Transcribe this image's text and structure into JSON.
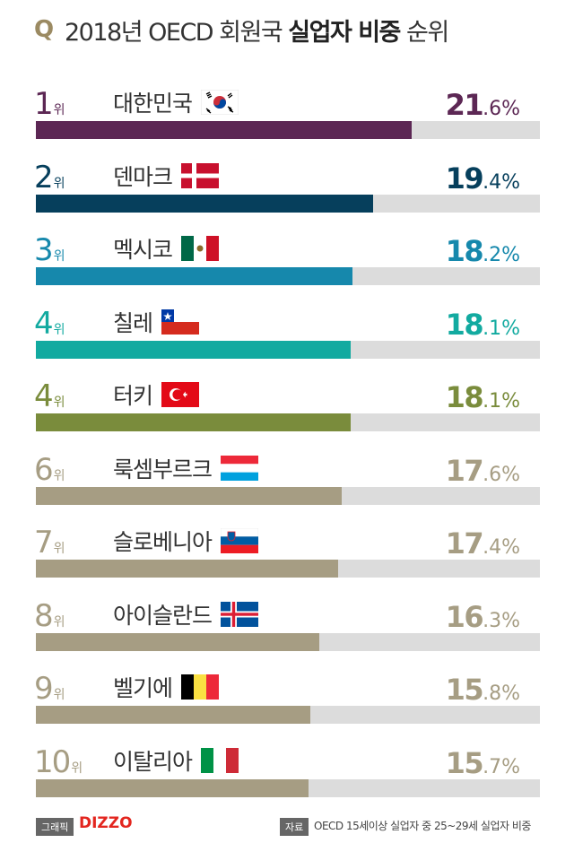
{
  "header": {
    "q_mark": "Q",
    "title_pre": "2018년 OECD 회원국 ",
    "title_bold": "실업자 비중",
    "title_post": " 순위"
  },
  "rank_suffix": "위",
  "chart_data": {
    "type": "bar",
    "orientation": "horizontal",
    "title": "2018년 OECD 회원국 실업자 비중 순위",
    "categories": [
      "대한민국",
      "덴마크",
      "멕시코",
      "칠레",
      "터키",
      "룩셈부르크",
      "슬로베니아",
      "아이슬란드",
      "벨기에",
      "이탈리아"
    ],
    "ranks": [
      "1",
      "2",
      "3",
      "4",
      "4",
      "6",
      "7",
      "8",
      "9",
      "10"
    ],
    "values": [
      21.6,
      19.4,
      18.2,
      18.1,
      18.1,
      17.6,
      17.4,
      16.3,
      15.8,
      15.7
    ],
    "value_labels": [
      {
        "int": "21",
        "dec": ".6%"
      },
      {
        "int": "19",
        "dec": ".4%"
      },
      {
        "int": "18",
        "dec": ".2%"
      },
      {
        "int": "18",
        "dec": ".1%"
      },
      {
        "int": "18",
        "dec": ".1%"
      },
      {
        "int": "17",
        "dec": ".6%"
      },
      {
        "int": "17",
        "dec": ".4%"
      },
      {
        "int": "16",
        "dec": ".3%"
      },
      {
        "int": "15",
        "dec": ".8%"
      },
      {
        "int": "15",
        "dec": ".7%"
      }
    ],
    "colors": [
      "#5c2754",
      "#063f5c",
      "#1688ac",
      "#12aaa0",
      "#7a8c3c",
      "#a69d83",
      "#a69d83",
      "#a69d83",
      "#a69d83",
      "#a69d83"
    ],
    "flags": [
      "south-korea-flag",
      "denmark-flag",
      "mexico-flag",
      "chile-flag",
      "turkey-flag",
      "luxembourg-flag",
      "slovenia-flag",
      "iceland-flag",
      "belgium-flag",
      "italy-flag"
    ],
    "track_color": "#dcdcdc",
    "xlim": [
      0,
      29
    ]
  },
  "footer": {
    "graphic_label": "그래픽",
    "brand": "DIZZO",
    "brand_color": "#e3261f",
    "source_label": "자료",
    "source_text": "OECD 15세이상 실업자 중 25~29세 실업자 비중"
  }
}
